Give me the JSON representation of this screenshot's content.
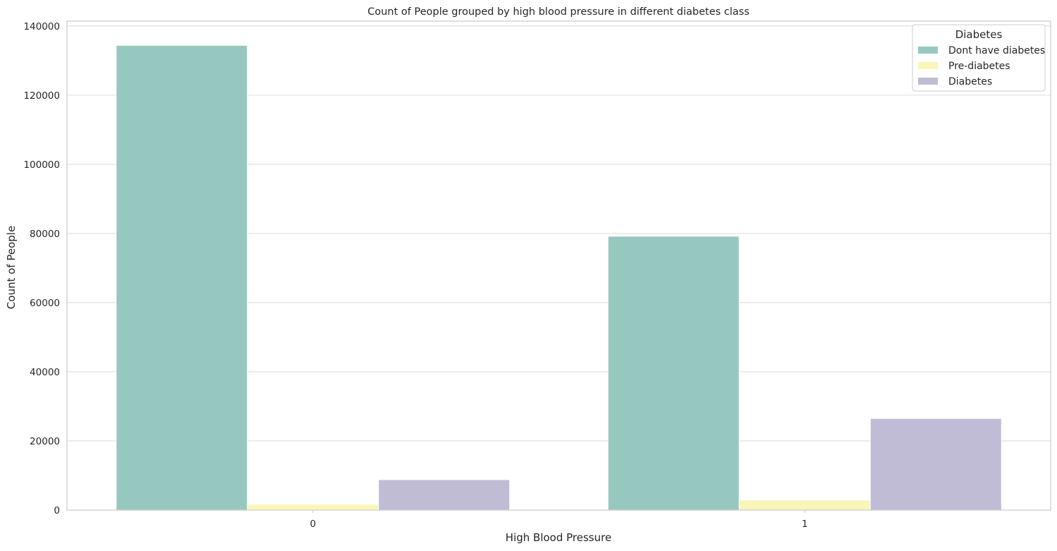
{
  "chart_data": {
    "type": "bar",
    "title": "Count of People grouped by high blood pressure in different diabetes class",
    "xlabel": "High Blood Pressure",
    "ylabel": "Count of People",
    "categories": [
      "0",
      "1"
    ],
    "series": [
      {
        "name": "Dont have diabetes",
        "color": "#97c8bf",
        "values": [
          134400,
          79200
        ]
      },
      {
        "name": "Pre-diabetes",
        "color": "#f9f6b9",
        "values": [
          1700,
          2900
        ]
      },
      {
        "name": "Diabetes",
        "color": "#c1bcd6",
        "values": [
          8800,
          26500
        ]
      }
    ],
    "ylim": [
      0,
      141400
    ],
    "yticks": [
      0,
      20000,
      40000,
      60000,
      80000,
      100000,
      120000,
      140000
    ],
    "grid": true,
    "legend": {
      "title": "Diabetes",
      "placement": "top-right"
    }
  }
}
